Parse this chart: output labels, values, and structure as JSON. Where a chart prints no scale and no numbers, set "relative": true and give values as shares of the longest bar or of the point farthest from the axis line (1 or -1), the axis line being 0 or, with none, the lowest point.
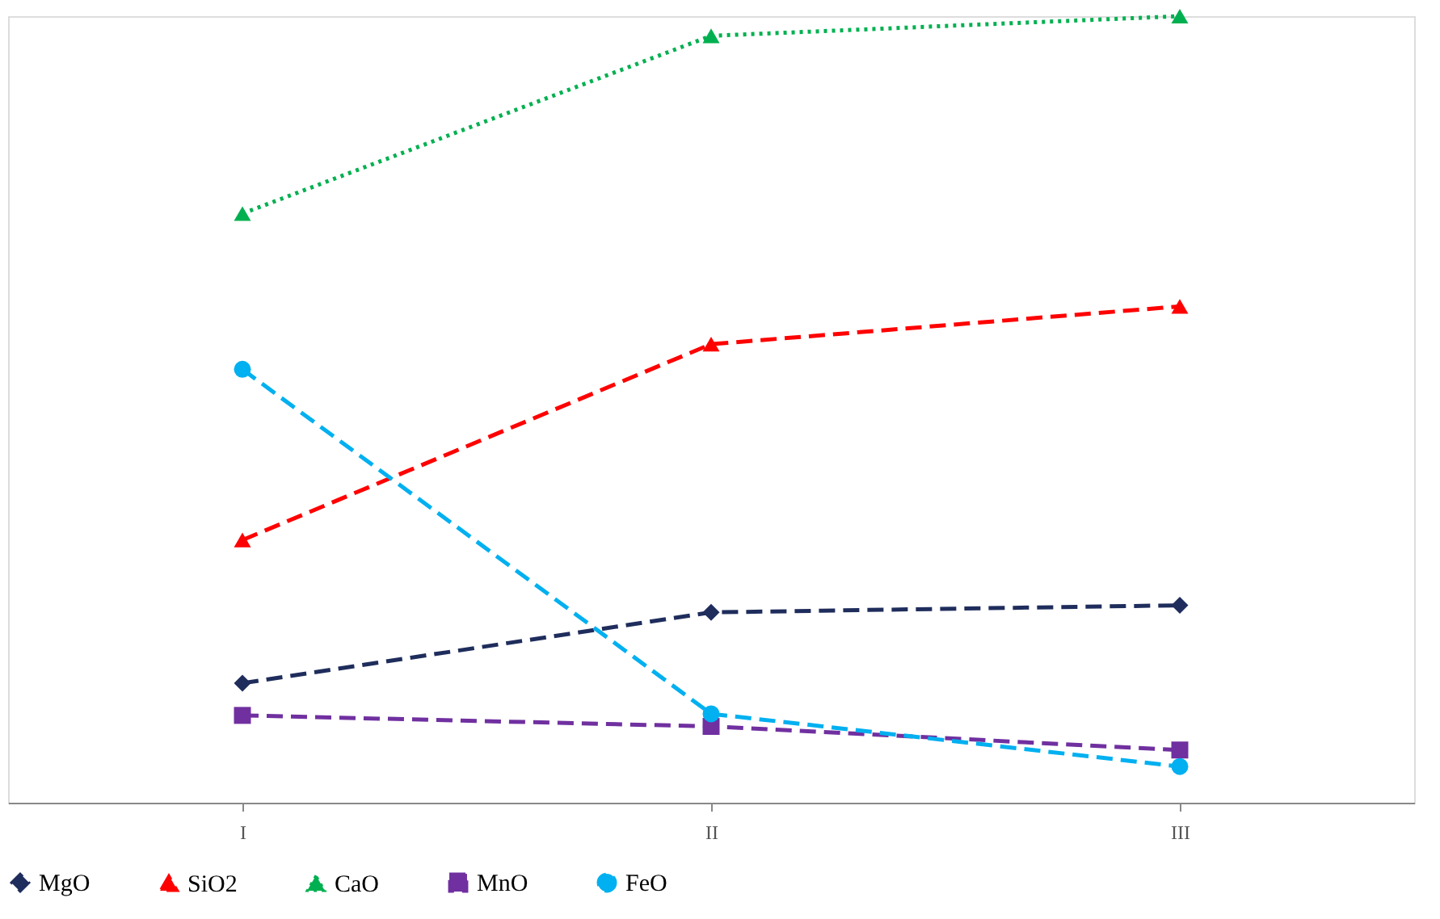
{
  "chart_data": {
    "type": "line",
    "relative": true,
    "categories": [
      "I",
      "II",
      "III"
    ],
    "legend": "bottom",
    "grid": false,
    "series": [
      {
        "name": "MgO",
        "color": "#1f2d5c",
        "values": [
          0.152,
          0.242,
          0.251
        ],
        "marker": "diamond",
        "line_style": "dashed"
      },
      {
        "name": "SiO2",
        "color": "#ff0000",
        "values": [
          0.334,
          0.583,
          0.631
        ],
        "marker": "triangle",
        "line_style": "dashed"
      },
      {
        "name": "CaO",
        "color": "#00b050",
        "values": [
          0.749,
          0.975,
          1
        ],
        "marker": "triangle",
        "line_style": "dotted"
      },
      {
        "name": "MnO",
        "color": "#7030a0",
        "values": [
          0.111,
          0.097,
          0.067
        ],
        "marker": "square",
        "line_style": "dashed"
      },
      {
        "name": "FeO",
        "color": "#00b0f0",
        "values": [
          0.551,
          0.113,
          0.046
        ],
        "marker": "circle",
        "line_style": "dashed"
      }
    ]
  }
}
